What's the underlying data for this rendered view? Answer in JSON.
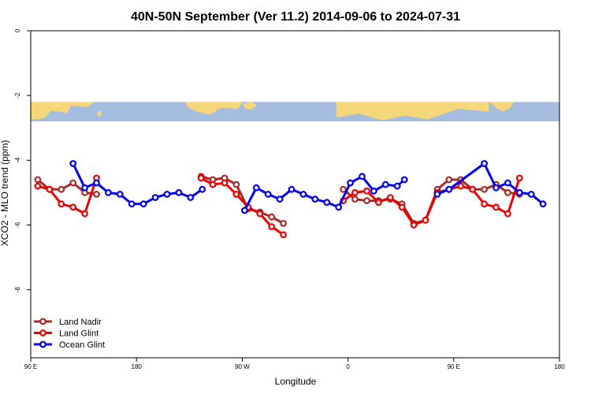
{
  "chart_data": {
    "type": "line",
    "title": "40N-50N September (Ver 11.2)   2014-09-06 to 2024-07-31",
    "xlabel": "Longitude",
    "ylabel": "XCO2 - MLO trend (ppm)",
    "xlim": [
      90,
      540
    ],
    "ylim": [
      0,
      -10.1
    ],
    "x_ticks": [
      {
        "value": 90,
        "label": "90 E"
      },
      {
        "value": 180,
        "label": "180"
      },
      {
        "value": 270,
        "label": "90 W"
      },
      {
        "value": 360,
        "label": "0"
      },
      {
        "value": 450,
        "label": "90 E"
      },
      {
        "value": 540,
        "label": "180"
      }
    ],
    "y_ticks": [
      {
        "value": 0,
        "label": "0"
      },
      {
        "value": -2,
        "label": "-2"
      },
      {
        "value": -4,
        "label": "-4"
      },
      {
        "value": -6,
        "label": "-6"
      },
      {
        "value": -8,
        "label": "-8"
      }
    ],
    "grid": false,
    "legend_position": "bottom-left",
    "map_band": {
      "ylim": [
        -2.2,
        -2.8
      ],
      "colors": {
        "land": "#f5d77a",
        "ocean": "#a5bedf"
      }
    },
    "series": [
      {
        "name": "Land Nadir",
        "color": "#a52a2a",
        "segments": [
          [
            [
              96,
              -4.6
            ],
            [
              106,
              -4.9
            ],
            [
              116,
              -4.9
            ],
            [
              126,
              -4.7
            ],
            [
              136,
              -5.0
            ],
            [
              146,
              -5.05
            ]
          ],
          [
            [
              235,
              -4.5
            ],
            [
              245,
              -4.6
            ],
            [
              255,
              -4.55
            ],
            [
              265,
              -4.75
            ],
            [
              275,
              -5.5
            ],
            [
              285,
              -5.6
            ],
            [
              295,
              -5.75
            ],
            [
              305,
              -5.95
            ]
          ],
          [
            [
              356,
              -4.9
            ],
            [
              366,
              -5.2
            ],
            [
              376,
              -5.25
            ],
            [
              386,
              -5.25
            ],
            [
              396,
              -5.2
            ],
            [
              406,
              -5.35
            ],
            [
              416,
              -5.95
            ],
            [
              426,
              -5.85
            ],
            [
              436,
              -4.9
            ],
            [
              446,
              -4.6
            ],
            [
              456,
              -4.6
            ],
            [
              466,
              -4.9
            ],
            [
              476,
              -4.9
            ],
            [
              486,
              -4.75
            ],
            [
              496,
              -5.0
            ],
            [
              506,
              -5.05
            ]
          ]
        ]
      },
      {
        "name": "Land Glint",
        "color": "#ee0000",
        "segments": [
          [
            [
              96,
              -4.8
            ],
            [
              106,
              -4.9
            ],
            [
              116,
              -5.35
            ],
            [
              126,
              -5.45
            ],
            [
              136,
              -5.65
            ],
            [
              146,
              -4.55
            ]
          ],
          [
            [
              235,
              -4.55
            ],
            [
              245,
              -4.75
            ],
            [
              255,
              -4.7
            ],
            [
              265,
              -5.05
            ],
            [
              275,
              -5.45
            ],
            [
              285,
              -5.65
            ],
            [
              295,
              -6.05
            ],
            [
              305,
              -6.3
            ]
          ],
          [
            [
              356,
              -5.25
            ],
            [
              366,
              -5.0
            ],
            [
              376,
              -4.95
            ],
            [
              386,
              -5.3
            ],
            [
              396,
              -5.15
            ],
            [
              406,
              -5.45
            ],
            [
              416,
              -6.0
            ],
            [
              426,
              -5.85
            ],
            [
              436,
              -5.0
            ],
            [
              446,
              -4.9
            ],
            [
              456,
              -4.8
            ],
            [
              466,
              -4.9
            ],
            [
              476,
              -5.35
            ],
            [
              486,
              -5.45
            ],
            [
              496,
              -5.65
            ],
            [
              506,
              -4.55
            ]
          ]
        ]
      },
      {
        "name": "Ocean Glint",
        "color": "#0000ee",
        "segments": [
          [
            [
              126,
              -4.1
            ],
            [
              136,
              -4.85
            ],
            [
              146,
              -4.7
            ],
            [
              156,
              -5.0
            ],
            [
              166,
              -5.05
            ],
            [
              176,
              -5.35
            ],
            [
              186,
              -5.35
            ],
            [
              196,
              -5.15
            ],
            [
              206,
              -5.05
            ],
            [
              216,
              -5.0
            ],
            [
              226,
              -5.15
            ],
            [
              236,
              -4.9
            ]
          ],
          [
            [
              272,
              -5.55
            ],
            [
              282,
              -4.85
            ],
            [
              292,
              -5.05
            ],
            [
              302,
              -5.2
            ],
            [
              312,
              -4.9
            ],
            [
              322,
              -5.05
            ],
            [
              332,
              -5.2
            ],
            [
              342,
              -5.3
            ],
            [
              352,
              -5.45
            ],
            [
              362,
              -4.7
            ],
            [
              372,
              -4.5
            ],
            [
              382,
              -4.95
            ],
            [
              392,
              -4.75
            ],
            [
              402,
              -4.8
            ],
            [
              408,
              -4.6
            ]
          ],
          [
            [
              436,
              -5.05
            ],
            [
              446,
              -4.9
            ],
            [
              476,
              -4.1
            ],
            [
              486,
              -4.85
            ],
            [
              496,
              -4.7
            ],
            [
              506,
              -5.0
            ],
            [
              516,
              -5.05
            ],
            [
              526,
              -5.35
            ]
          ]
        ]
      }
    ]
  }
}
